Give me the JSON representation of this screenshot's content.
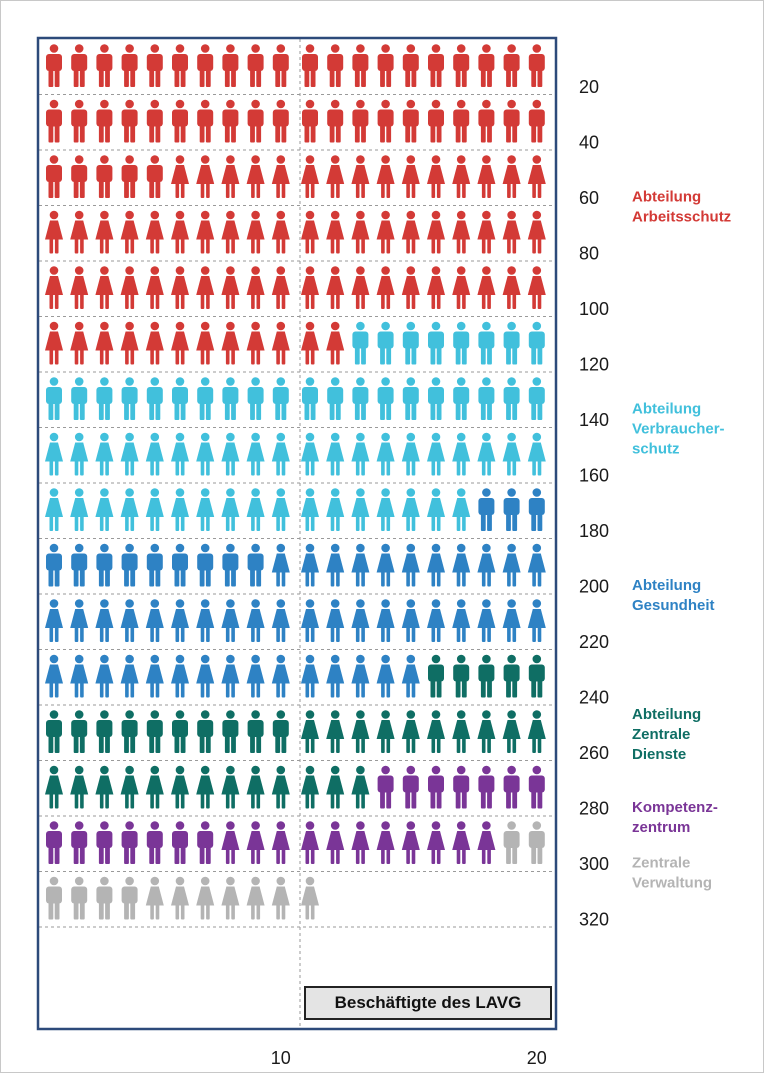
{
  "chart_data": {
    "type": "pictogram",
    "title": "",
    "caption": "Beschäftigte des LAVG",
    "icons_per_row": 20,
    "ylim": [
      0,
      340
    ],
    "y_ticks": [
      20,
      40,
      60,
      80,
      100,
      120,
      140,
      160,
      180,
      200,
      220,
      240,
      260,
      280,
      300,
      320
    ],
    "x_ticks": [
      10,
      20
    ],
    "total": 311,
    "series": [
      {
        "name": "Abteilung Arbeitsschutz",
        "label_lines": [
          "Abteilung",
          "Arbeitsschutz"
        ],
        "color": "#d33a36",
        "count": 112,
        "icons": [
          [
            "m",
            45
          ],
          [
            "f",
            67
          ]
        ]
      },
      {
        "name": "Abteilung Verbraucherschutz",
        "label_lines": [
          "Abteilung",
          "Verbraucher-",
          "schutz"
        ],
        "color": "#41c0dc",
        "count": 65,
        "icons": [
          [
            "m",
            28
          ],
          [
            "f",
            37
          ]
        ]
      },
      {
        "name": "Abteilung Gesundheit",
        "label_lines": [
          "Abteilung",
          "Gesundheit"
        ],
        "color": "#2e82c4",
        "count": 58,
        "icons": [
          [
            "m",
            12
          ],
          [
            "f",
            46
          ]
        ]
      },
      {
        "name": "Abteilung Zentrale Dienste",
        "label_lines": [
          "Abteilung",
          "Zentrale",
          "Dienste"
        ],
        "color": "#0f6e64",
        "count": 38,
        "icons": [
          [
            "m",
            15
          ],
          [
            "f",
            23
          ]
        ]
      },
      {
        "name": "Kompetenzzentrum",
        "label_lines": [
          "Kompetenz-",
          "zentrum"
        ],
        "color": "#7a3597",
        "count": 25,
        "icons": [
          [
            "m",
            14
          ],
          [
            "f",
            11
          ]
        ]
      },
      {
        "name": "Zentrale Verwaltung",
        "label_lines": [
          "Zentrale",
          "Verwaltung"
        ],
        "color": "#b4b4b4",
        "count": 13,
        "icons": [
          [
            "m",
            6
          ],
          [
            "f",
            7
          ]
        ]
      }
    ]
  }
}
